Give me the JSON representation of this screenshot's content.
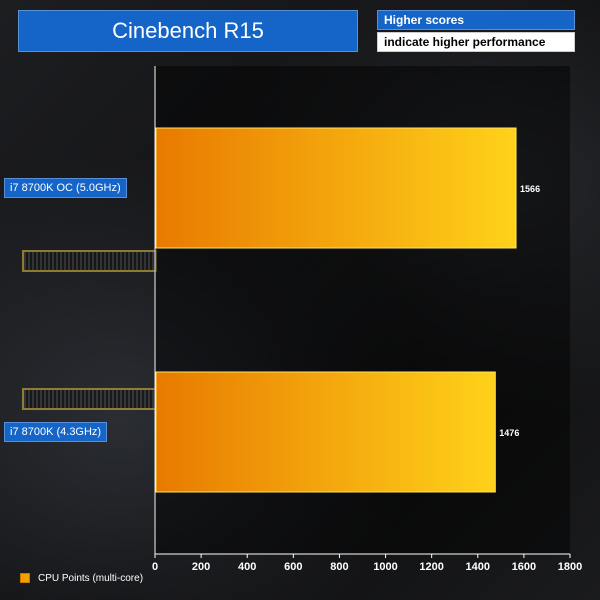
{
  "title": "Cinebench R15",
  "note_lines": [
    "Higher scores",
    "indicate higher performance"
  ],
  "legend": {
    "label": "CPU Points (multi-core)",
    "color": "#f5a000"
  },
  "colors": {
    "accent": "#1565c8",
    "bar_light": "#ffd21a",
    "bar_dark": "#e87a00",
    "bar_border": "#ffe066"
  },
  "chart_data": {
    "type": "bar",
    "orientation": "horizontal",
    "title": "Cinebench R15",
    "categories": [
      "i7 8700K OC (5.0GHz)",
      "i7 8700K (4.3GHz)"
    ],
    "series": [
      {
        "name": "CPU Points (multi-core)",
        "values": [
          1566,
          1476
        ]
      }
    ],
    "data_labels": [
      "1566",
      "1476"
    ],
    "xlim": [
      0,
      1800
    ],
    "xticks": [
      0,
      200,
      400,
      600,
      800,
      1000,
      1200,
      1400,
      1600,
      1800
    ],
    "xtick_labels": [
      "0",
      "200",
      "400",
      "600",
      "800",
      "1000",
      "1200",
      "1400",
      "1600",
      "1800"
    ],
    "legend_position": "bottom-left",
    "grid": false
  }
}
